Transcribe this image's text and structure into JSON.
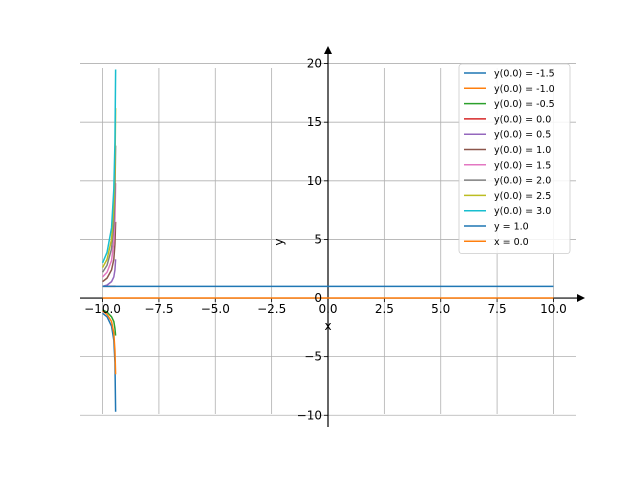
{
  "chart_data": {
    "type": "line",
    "title": "",
    "xlabel": "x",
    "ylabel": "y",
    "xlim": [
      -11.0,
      11.0
    ],
    "ylim": [
      -11.0,
      21.5
    ],
    "grid": true,
    "legend_position": "top-right",
    "xticks": [
      -10.0,
      -7.5,
      -5.0,
      -2.5,
      0.0,
      2.5,
      5.0,
      7.5,
      10.0
    ],
    "xtick_labels": [
      "−10.0",
      "−7.5",
      "−5.0",
      "−2.5",
      "0.0",
      "2.5",
      "5.0",
      "7.5",
      "10.0"
    ],
    "yticks": [
      -10,
      -5,
      0,
      5,
      10,
      15,
      20
    ],
    "ytick_labels": [
      "−10",
      "−5",
      "0",
      "5",
      "10",
      "15",
      "20"
    ],
    "series": [
      {
        "name": "y(0.0) = -1.5",
        "color": "#1f77b4",
        "x": [
          -10.0,
          -9.8,
          -9.6,
          -9.5,
          -9.45,
          -9.42
        ],
        "y": [
          -1.3,
          -1.6,
          -2.4,
          -3.6,
          -5.5,
          -9.7
        ]
      },
      {
        "name": "y(0.0) = -1.0",
        "color": "#ff7f0e",
        "x": [
          -10.0,
          -9.8,
          -9.6,
          -9.5,
          -9.45,
          -9.42
        ],
        "y": [
          -1.1,
          -1.4,
          -2.0,
          -3.0,
          -4.5,
          -6.5
        ]
      },
      {
        "name": "y(0.0) = -0.5",
        "color": "#2ca02c",
        "x": [
          -10.0,
          -9.8,
          -9.6,
          -9.5,
          -9.45,
          -9.42
        ],
        "y": [
          -1.0,
          -1.2,
          -1.6,
          -2.0,
          -2.6,
          -3.2
        ]
      },
      {
        "name": "y(0.0) = 0.0",
        "color": "#d62728",
        "x": [
          -10.0,
          -9.5,
          -9.42
        ],
        "y": [
          1.0,
          1.0,
          1.0
        ]
      },
      {
        "name": "y(0.0) = 0.5",
        "color": "#9467bd",
        "x": [
          -10.0,
          -9.8,
          -9.6,
          -9.5,
          -9.45,
          -9.42
        ],
        "y": [
          1.0,
          1.1,
          1.4,
          1.8,
          2.4,
          3.3
        ]
      },
      {
        "name": "y(0.0) = 1.0",
        "color": "#8c564b",
        "x": [
          -10.0,
          -9.8,
          -9.6,
          -9.5,
          -9.45,
          -9.42
        ],
        "y": [
          1.4,
          1.7,
          2.4,
          3.3,
          4.6,
          6.5
        ]
      },
      {
        "name": "y(0.0) = 1.5",
        "color": "#e377c2",
        "x": [
          -10.0,
          -9.8,
          -9.6,
          -9.5,
          -9.45,
          -9.42
        ],
        "y": [
          1.8,
          2.2,
          3.2,
          4.8,
          6.8,
          9.8
        ]
      },
      {
        "name": "y(0.0) = 2.0",
        "color": "#7f7f7f",
        "x": [
          -10.0,
          -9.8,
          -9.6,
          -9.5,
          -9.45,
          -9.42
        ],
        "y": [
          2.2,
          2.8,
          4.2,
          6.3,
          9.0,
          13.0
        ]
      },
      {
        "name": "y(0.0) = 2.5",
        "color": "#bcbd22",
        "x": [
          -10.0,
          -9.8,
          -9.6,
          -9.5,
          -9.45,
          -9.42
        ],
        "y": [
          2.6,
          3.3,
          5.0,
          7.8,
          11.0,
          16.2
        ]
      },
      {
        "name": "y(0.0) = 3.0",
        "color": "#17becf",
        "x": [
          -10.0,
          -9.8,
          -9.6,
          -9.5,
          -9.45,
          -9.42
        ],
        "y": [
          3.0,
          3.9,
          6.0,
          9.3,
          13.3,
          19.5
        ]
      },
      {
        "name": "y = 1.0",
        "color": "#1f77b4",
        "x": [
          -10.0,
          10.0
        ],
        "y": [
          1.0,
          1.0
        ]
      },
      {
        "name": "x = 0.0",
        "color": "#ff7f0e",
        "x": [
          -10.0,
          10.0
        ],
        "y": [
          0.0,
          0.0
        ]
      }
    ]
  }
}
